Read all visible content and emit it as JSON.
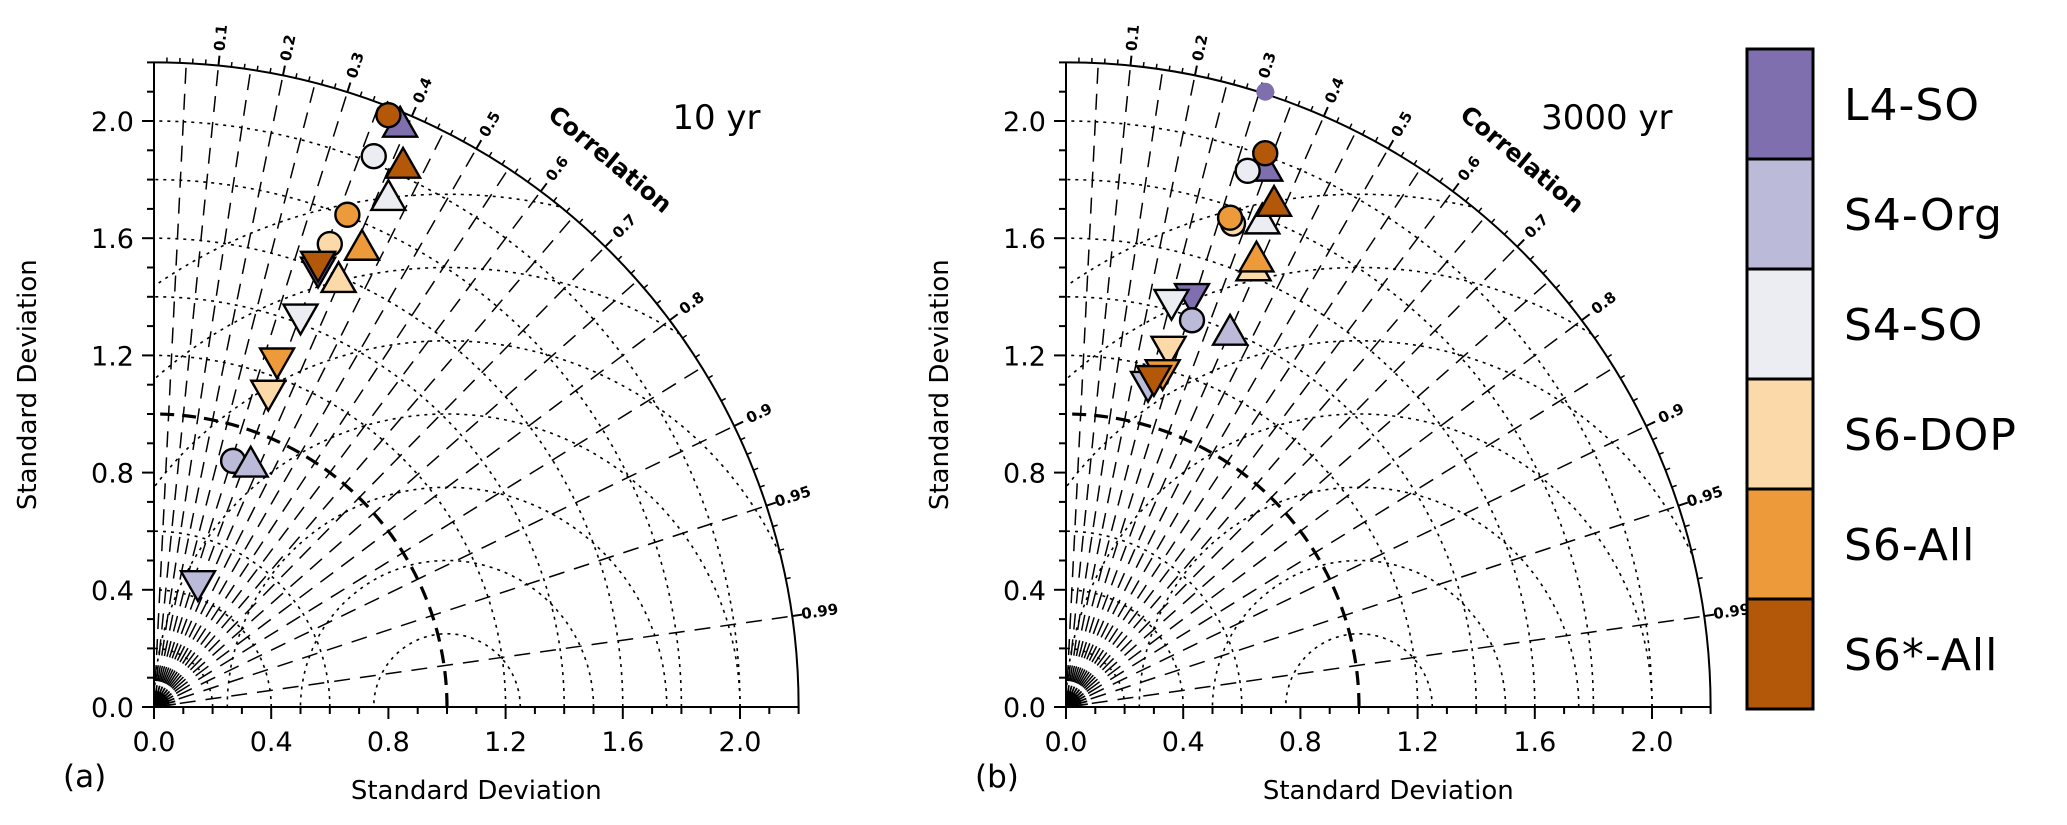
{
  "chart_data": [
    {
      "type": "scatter",
      "subtype": "taylor-diagram",
      "panel_letter": "(a)",
      "title": "10 yr",
      "xlabel": "Standard Deviation",
      "ylabel": "Standard Deviation",
      "correlation_label": "Correlation",
      "std_range": [
        0,
        2.2
      ],
      "std_ticks": [
        "0.0",
        "0.4",
        "0.8",
        "1.2",
        "1.6",
        "2.0"
      ],
      "correlation_ticks": [
        "0.1",
        "0.2",
        "0.3",
        "0.4",
        "0.5",
        "0.6",
        "0.7",
        "0.8",
        "0.9",
        "0.95",
        "0.99"
      ],
      "reference_std": 1.0,
      "grid": true,
      "points": [
        {
          "series": "L4-SO",
          "marker": "triangle-up",
          "x": 0.84,
          "y": 1.99
        },
        {
          "series": "L4-SO",
          "marker": "triangle-down",
          "x": 0.56,
          "y": 1.49
        },
        {
          "series": "S4-Org",
          "marker": "triangle-down",
          "x": 0.15,
          "y": 0.42
        },
        {
          "series": "S4-Org",
          "marker": "circle",
          "x": 0.27,
          "y": 0.84
        },
        {
          "series": "S4-Org",
          "marker": "triangle-up",
          "x": 0.33,
          "y": 0.83
        },
        {
          "series": "S4-SO",
          "marker": "circle",
          "x": 0.75,
          "y": 1.88
        },
        {
          "series": "S4-SO",
          "marker": "triangle-up",
          "x": 0.8,
          "y": 1.74
        },
        {
          "series": "S4-SO",
          "marker": "triangle-down",
          "x": 0.5,
          "y": 1.33
        },
        {
          "series": "S6-DOP",
          "marker": "circle",
          "x": 0.6,
          "y": 1.58
        },
        {
          "series": "S6-DOP",
          "marker": "triangle-up",
          "x": 0.63,
          "y": 1.46
        },
        {
          "series": "S6-DOP",
          "marker": "triangle-down",
          "x": 0.39,
          "y": 1.07
        },
        {
          "series": "S6-All",
          "marker": "circle",
          "x": 0.66,
          "y": 1.68
        },
        {
          "series": "S6-All",
          "marker": "triangle-up",
          "x": 0.71,
          "y": 1.57
        },
        {
          "series": "S6-All",
          "marker": "triangle-down",
          "x": 0.42,
          "y": 1.18
        },
        {
          "series": "S6*-All",
          "marker": "circle",
          "x": 0.8,
          "y": 2.02
        },
        {
          "series": "S6*-All",
          "marker": "triangle-up",
          "x": 0.85,
          "y": 1.85
        },
        {
          "series": "S6*-All",
          "marker": "triangle-down",
          "x": 0.56,
          "y": 1.51
        }
      ]
    },
    {
      "type": "scatter",
      "subtype": "taylor-diagram",
      "panel_letter": "(b)",
      "title": "3000 yr",
      "xlabel": "Standard Deviation",
      "ylabel": "Standard Deviation",
      "correlation_label": "Correlation",
      "std_range": [
        0,
        2.2
      ],
      "std_ticks": [
        "0.0",
        "0.4",
        "0.8",
        "1.2",
        "1.6",
        "2.0"
      ],
      "correlation_ticks": [
        "0.1",
        "0.2",
        "0.3",
        "0.4",
        "0.5",
        "0.6",
        "0.7",
        "0.8",
        "0.9",
        "0.95",
        "0.99"
      ],
      "reference_std": 1.0,
      "grid": true,
      "points": [
        {
          "series": "L4-SO",
          "marker": "small-circle",
          "x": 0.68,
          "y": 2.1
        },
        {
          "series": "L4-SO",
          "marker": "triangle-up",
          "x": 0.68,
          "y": 1.84
        },
        {
          "series": "L4-SO",
          "marker": "triangle-down",
          "x": 0.43,
          "y": 1.4
        },
        {
          "series": "S4-Org",
          "marker": "triangle-up",
          "x": 0.56,
          "y": 1.28
        },
        {
          "series": "S4-Org",
          "marker": "circle",
          "x": 0.43,
          "y": 1.32
        },
        {
          "series": "S4-Org",
          "marker": "triangle-down",
          "x": 0.28,
          "y": 1.1
        },
        {
          "series": "S4-SO",
          "marker": "circle",
          "x": 0.62,
          "y": 1.83
        },
        {
          "series": "S4-SO",
          "marker": "triangle-up",
          "x": 0.67,
          "y": 1.66
        },
        {
          "series": "S4-SO",
          "marker": "triangle-down",
          "x": 0.36,
          "y": 1.38
        },
        {
          "series": "S6-DOP",
          "marker": "circle",
          "x": 0.57,
          "y": 1.65
        },
        {
          "series": "S6-DOP",
          "marker": "triangle-up",
          "x": 0.64,
          "y": 1.5
        },
        {
          "series": "S6-DOP",
          "marker": "triangle-down",
          "x": 0.35,
          "y": 1.22
        },
        {
          "series": "S6-All",
          "marker": "circle",
          "x": 0.56,
          "y": 1.67
        },
        {
          "series": "S6-All",
          "marker": "triangle-up",
          "x": 0.65,
          "y": 1.53
        },
        {
          "series": "S6-All",
          "marker": "triangle-down",
          "x": 0.33,
          "y": 1.14
        },
        {
          "series": "S6*-All",
          "marker": "circle",
          "x": 0.68,
          "y": 1.89
        },
        {
          "series": "S6*-All",
          "marker": "triangle-up",
          "x": 0.71,
          "y": 1.72
        },
        {
          "series": "S6*-All",
          "marker": "triangle-down",
          "x": 0.3,
          "y": 1.12
        }
      ]
    }
  ],
  "legend": {
    "items": [
      {
        "name": "L4-SO",
        "color": "#7f6fae"
      },
      {
        "name": "S4-Org",
        "color": "#bcbad9"
      },
      {
        "name": "S4-SO",
        "color": "#ececf3"
      },
      {
        "name": "S6-DOP",
        "color": "#fcd9a9"
      },
      {
        "name": "S6-All",
        "color": "#ec9a3a"
      },
      {
        "name": "S6*-All",
        "color": "#b35808"
      }
    ]
  }
}
